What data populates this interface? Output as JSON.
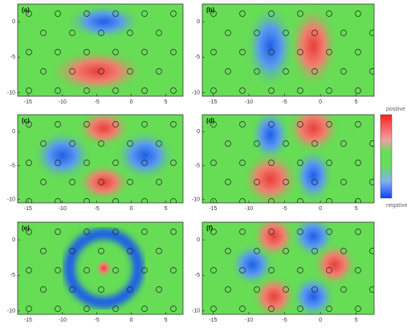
{
  "chart_data": [
    {
      "type": "contour",
      "label": "(a)",
      "xlim": [
        -16.5,
        7.5
      ],
      "ylim": [
        -10.5,
        2.5
      ],
      "xticks": [
        -15,
        -10,
        -5,
        0,
        5
      ],
      "yticks": [
        0,
        -5,
        -10
      ],
      "maxima": {
        "x": [
          -5
        ],
        "y": [
          -7
        ],
        "rx": [
          4.5
        ],
        "ry": [
          2
        ]
      },
      "minima": {
        "x": [
          -4
        ],
        "y": [
          0
        ],
        "rx": [
          3.5
        ],
        "ry": [
          1.6
        ]
      }
    },
    {
      "type": "contour",
      "label": "(b)",
      "xlim": [
        -16.5,
        7.5
      ],
      "ylim": [
        -10.5,
        2.5
      ],
      "xticks": [
        -15,
        -10,
        -5,
        0,
        5
      ],
      "yticks": [
        0,
        -5,
        -10
      ],
      "maxima": {
        "x": [
          -1
        ],
        "y": [
          -3.5
        ],
        "rx": [
          2.2
        ],
        "ry": [
          3.8
        ]
      },
      "minima": {
        "x": [
          -7
        ],
        "y": [
          -3.5
        ],
        "rx": [
          2.2
        ],
        "ry": [
          3.8
        ]
      }
    },
    {
      "type": "contour",
      "label": "(c)",
      "xlim": [
        -16.5,
        7.5
      ],
      "ylim": [
        -10.5,
        2.5
      ],
      "xticks": [
        -15,
        -10,
        -5,
        0,
        5
      ],
      "yticks": [
        0,
        -5,
        -10
      ],
      "maxima": {
        "x": [
          -4,
          -4
        ],
        "y": [
          0.5,
          -7.5
        ],
        "rx": [
          2.5,
          2.5
        ],
        "ry": [
          1.8,
          1.8
        ]
      },
      "minima": {
        "x": [
          -10,
          2
        ],
        "y": [
          -3.5,
          -3.5
        ],
        "rx": [
          2.8,
          2.8
        ],
        "ry": [
          2.4,
          2.4
        ]
      }
    },
    {
      "type": "contour",
      "label": "(d)",
      "xlim": [
        -16.5,
        7.5
      ],
      "ylim": [
        -10.5,
        2.5
      ],
      "xticks": [
        -15,
        -10,
        -5,
        0,
        5
      ],
      "yticks": [
        0,
        -5,
        -10
      ],
      "maxima": {
        "x": [
          -1,
          -7
        ],
        "y": [
          0.5,
          -7
        ],
        "rx": [
          2.4,
          2.6
        ],
        "ry": [
          2.4,
          2.6
        ]
      },
      "minima": {
        "x": [
          -7,
          -1
        ],
        "y": [
          -0.5,
          -6.5
        ],
        "rx": [
          1.8,
          1.8
        ],
        "ry": [
          2.6,
          2.6
        ]
      }
    },
    {
      "type": "contour",
      "label": "(e)",
      "xlim": [
        -16.5,
        7.5
      ],
      "ylim": [
        -10.5,
        2.5
      ],
      "xticks": [
        -15,
        -10,
        -5,
        0,
        5
      ],
      "yticks": [
        0,
        -5,
        -10
      ],
      "maxima": {
        "x": [
          -4
        ],
        "y": [
          -4
        ],
        "rx": [
          0.8
        ],
        "ry": [
          0.8
        ]
      },
      "ring": {
        "x": -4,
        "y": -4,
        "r": 5
      }
    },
    {
      "type": "contour",
      "label": "(f)",
      "xlim": [
        -16.5,
        7.5
      ],
      "ylim": [
        -10.5,
        2.5
      ],
      "xticks": [
        -15,
        -10,
        -5,
        0,
        5
      ],
      "yticks": [
        0,
        -5,
        -10
      ],
      "maxima": {
        "x": [
          -6.5,
          2,
          -6.5
        ],
        "y": [
          0.5,
          -3.5,
          -8
        ],
        "rx": [
          2,
          2,
          2
        ],
        "ry": [
          2,
          2,
          2
        ]
      },
      "minima": {
        "x": [
          -1,
          -9.5,
          -1
        ],
        "y": [
          0.5,
          -3.5,
          -8
        ],
        "rx": [
          2,
          2,
          2
        ],
        "ry": [
          2,
          2,
          2
        ]
      }
    }
  ],
  "colorbar": {
    "high_label": "positive",
    "low_label": "negative"
  },
  "colors": {
    "positive": "#e8403a",
    "negative": "#1f5fe8",
    "background": "#66dd55"
  }
}
